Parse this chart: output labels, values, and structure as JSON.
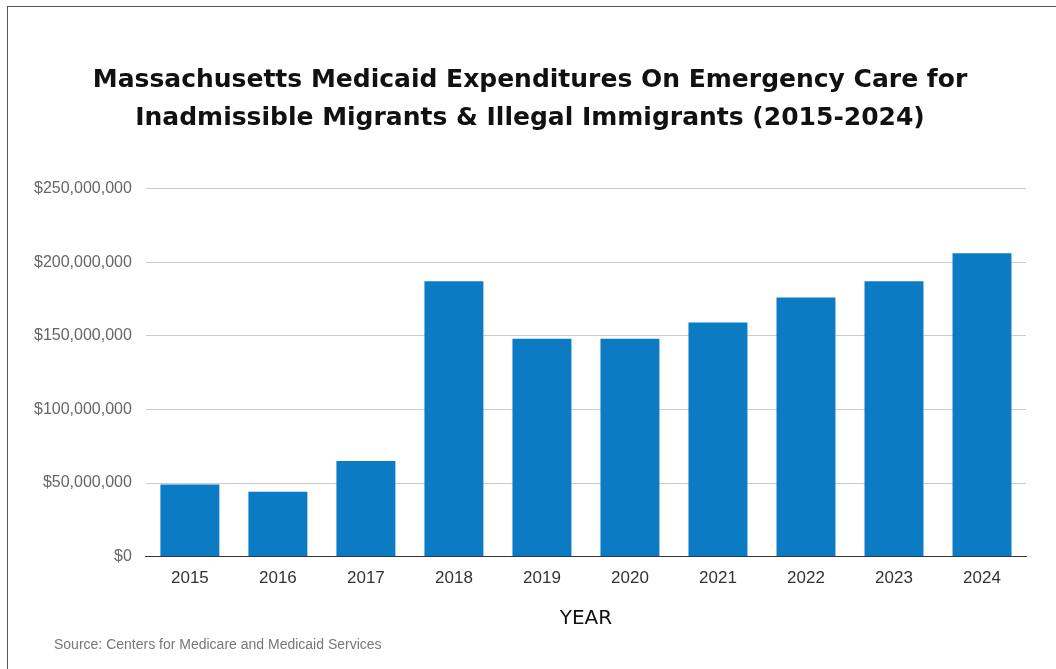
{
  "chart_data": {
    "type": "bar",
    "title": "Massachusetts Medicaid Expenditures On Emergency Care for Inadmissible Migrants & Illegal Immigrants (2015-2024)",
    "categories": [
      "2015",
      "2016",
      "2017",
      "2018",
      "2019",
      "2020",
      "2021",
      "2022",
      "2023",
      "2024"
    ],
    "values": [
      49000000,
      44000000,
      65000000,
      187000000,
      148000000,
      148000000,
      159000000,
      176000000,
      187000000,
      206000000
    ],
    "color": "#0b7cc3",
    "xlabel": "YEAR",
    "ylim": [
      0,
      250000000
    ],
    "yticks": [
      {
        "value": 0,
        "label": "$0"
      },
      {
        "value": 50000000,
        "label": "$50,000,000"
      },
      {
        "value": 100000000,
        "label": "$100,000,000"
      },
      {
        "value": 150000000,
        "label": "$150,000,000"
      },
      {
        "value": 200000000,
        "label": "$200,000,000"
      },
      {
        "value": 250000000,
        "label": "$250,000,000"
      }
    ],
    "grid": "y",
    "legend": false,
    "annotations": [
      "Source: Centers for Medicare and Medicaid Services"
    ]
  }
}
